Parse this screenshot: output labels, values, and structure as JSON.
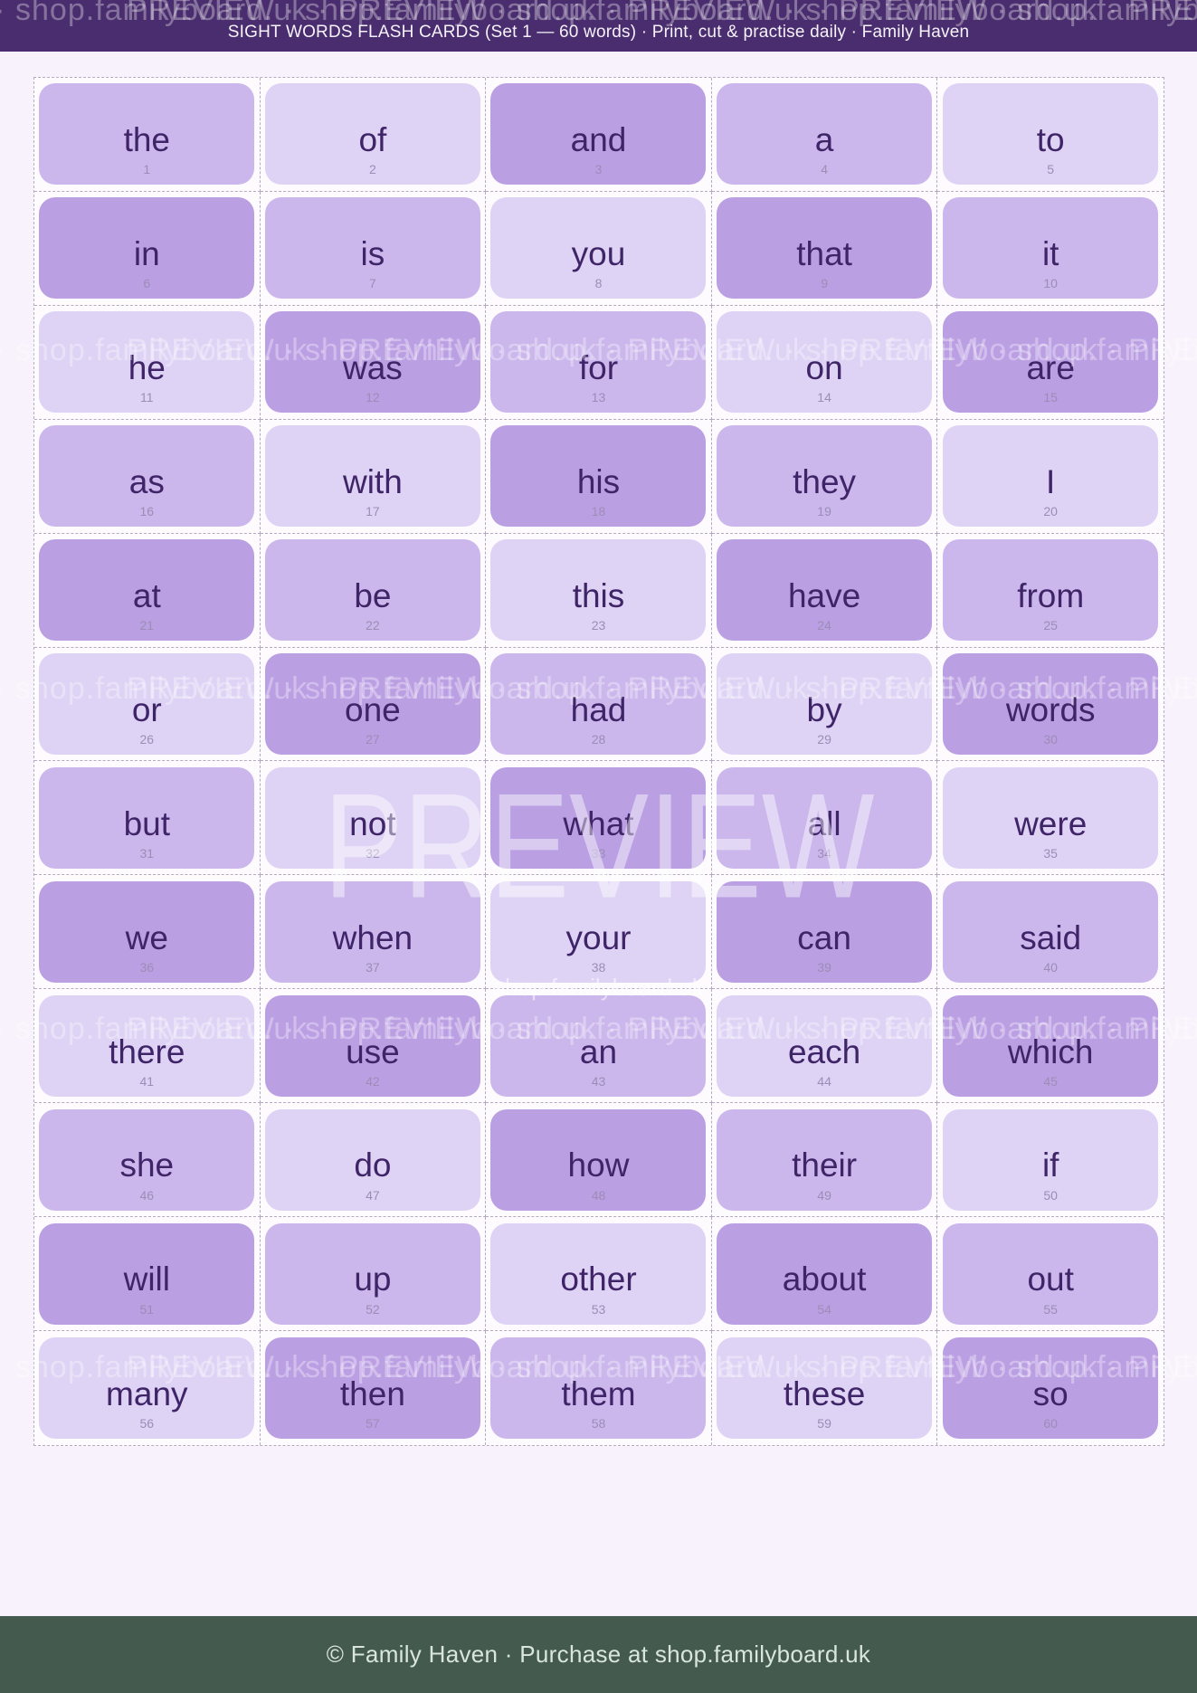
{
  "header": {
    "title": "SIGHT WORDS FLASH CARDS (Set 1 — 60 words)  ·  Print, cut & practise daily  ·  Family Haven"
  },
  "watermark": {
    "tile": "PREVIEW · shop.familyboard.uk · ",
    "big": "PREVIEW",
    "small": "shop.familyboard.uk",
    "band_tops": [
      -8,
      368,
      742,
      1118,
      1492
    ]
  },
  "colors": {
    "header_bg": "#4a2d6e",
    "page_bg": "#f7f2fb",
    "card_medium": "#cbb7ec",
    "card_light": "#ded3f5",
    "card_dark": "#bb9fe3",
    "word_text": "#3f2468",
    "number_text": "#9c8db6",
    "cut_line": "#b4abc3",
    "footer_bg": "#455a4e",
    "footer_text": "#d9e6dc"
  },
  "cards": [
    {
      "word": "the",
      "num": "1",
      "tone": "m"
    },
    {
      "word": "of",
      "num": "2",
      "tone": "l"
    },
    {
      "word": "and",
      "num": "3",
      "tone": "d"
    },
    {
      "word": "a",
      "num": "4",
      "tone": "m"
    },
    {
      "word": "to",
      "num": "5",
      "tone": "l"
    },
    {
      "word": "in",
      "num": "6",
      "tone": "d"
    },
    {
      "word": "is",
      "num": "7",
      "tone": "m"
    },
    {
      "word": "you",
      "num": "8",
      "tone": "l"
    },
    {
      "word": "that",
      "num": "9",
      "tone": "d"
    },
    {
      "word": "it",
      "num": "10",
      "tone": "m"
    },
    {
      "word": "he",
      "num": "11",
      "tone": "l"
    },
    {
      "word": "was",
      "num": "12",
      "tone": "d"
    },
    {
      "word": "for",
      "num": "13",
      "tone": "m"
    },
    {
      "word": "on",
      "num": "14",
      "tone": "l"
    },
    {
      "word": "are",
      "num": "15",
      "tone": "d"
    },
    {
      "word": "as",
      "num": "16",
      "tone": "m"
    },
    {
      "word": "with",
      "num": "17",
      "tone": "l"
    },
    {
      "word": "his",
      "num": "18",
      "tone": "d"
    },
    {
      "word": "they",
      "num": "19",
      "tone": "m"
    },
    {
      "word": "I",
      "num": "20",
      "tone": "l"
    },
    {
      "word": "at",
      "num": "21",
      "tone": "d"
    },
    {
      "word": "be",
      "num": "22",
      "tone": "m"
    },
    {
      "word": "this",
      "num": "23",
      "tone": "l"
    },
    {
      "word": "have",
      "num": "24",
      "tone": "d"
    },
    {
      "word": "from",
      "num": "25",
      "tone": "m"
    },
    {
      "word": "or",
      "num": "26",
      "tone": "l"
    },
    {
      "word": "one",
      "num": "27",
      "tone": "d"
    },
    {
      "word": "had",
      "num": "28",
      "tone": "m"
    },
    {
      "word": "by",
      "num": "29",
      "tone": "l"
    },
    {
      "word": "words",
      "num": "30",
      "tone": "d"
    },
    {
      "word": "but",
      "num": "31",
      "tone": "m"
    },
    {
      "word": "not",
      "num": "32",
      "tone": "l"
    },
    {
      "word": "what",
      "num": "33",
      "tone": "d"
    },
    {
      "word": "all",
      "num": "34",
      "tone": "m"
    },
    {
      "word": "were",
      "num": "35",
      "tone": "l"
    },
    {
      "word": "we",
      "num": "36",
      "tone": "d"
    },
    {
      "word": "when",
      "num": "37",
      "tone": "m"
    },
    {
      "word": "your",
      "num": "38",
      "tone": "l"
    },
    {
      "word": "can",
      "num": "39",
      "tone": "d"
    },
    {
      "word": "said",
      "num": "40",
      "tone": "m"
    },
    {
      "word": "there",
      "num": "41",
      "tone": "l"
    },
    {
      "word": "use",
      "num": "42",
      "tone": "d"
    },
    {
      "word": "an",
      "num": "43",
      "tone": "m"
    },
    {
      "word": "each",
      "num": "44",
      "tone": "l"
    },
    {
      "word": "which",
      "num": "45",
      "tone": "d"
    },
    {
      "word": "she",
      "num": "46",
      "tone": "m"
    },
    {
      "word": "do",
      "num": "47",
      "tone": "l"
    },
    {
      "word": "how",
      "num": "48",
      "tone": "d"
    },
    {
      "word": "their",
      "num": "49",
      "tone": "m"
    },
    {
      "word": "if",
      "num": "50",
      "tone": "l"
    },
    {
      "word": "will",
      "num": "51",
      "tone": "d"
    },
    {
      "word": "up",
      "num": "52",
      "tone": "m"
    },
    {
      "word": "other",
      "num": "53",
      "tone": "l"
    },
    {
      "word": "about",
      "num": "54",
      "tone": "d"
    },
    {
      "word": "out",
      "num": "55",
      "tone": "m"
    },
    {
      "word": "many",
      "num": "56",
      "tone": "l"
    },
    {
      "word": "then",
      "num": "57",
      "tone": "d"
    },
    {
      "word": "them",
      "num": "58",
      "tone": "m"
    },
    {
      "word": "these",
      "num": "59",
      "tone": "l"
    },
    {
      "word": "so",
      "num": "60",
      "tone": "d"
    }
  ],
  "footer": {
    "text": "© Family Haven  ·  Purchase at shop.familyboard.uk"
  }
}
